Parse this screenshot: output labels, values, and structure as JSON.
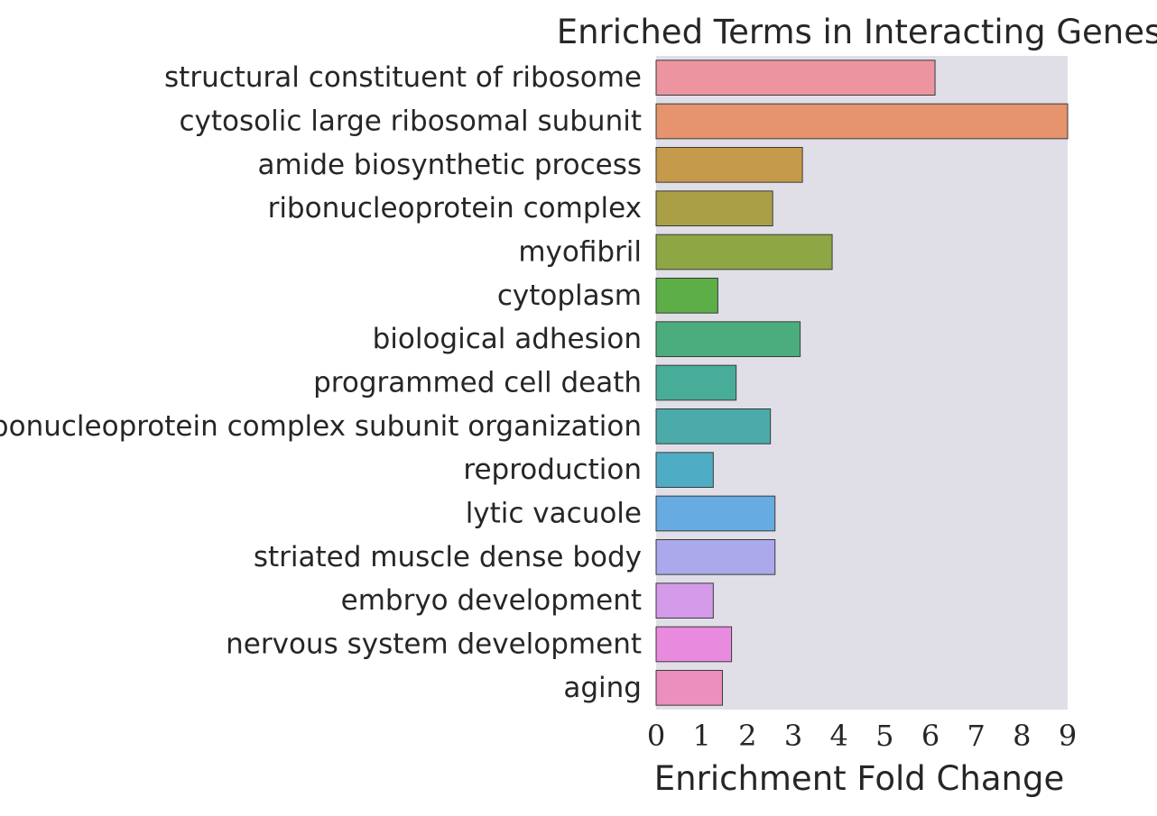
{
  "chart_data": {
    "type": "bar",
    "orientation": "horizontal",
    "title": "Enriched Terms in Interacting Genes",
    "xlabel": "Enrichment Fold Change",
    "ylabel": "",
    "xlim": [
      0,
      9
    ],
    "xticks": [
      "0",
      "1",
      "2",
      "3",
      "4",
      "5",
      "6",
      "7",
      "8",
      "9"
    ],
    "grid": false,
    "legend": "none",
    "background": "#e0dfe7",
    "categories": [
      "structural constituent of ribosome",
      "cytosolic large ribosomal subunit",
      "amide biosynthetic process",
      "ribonucleoprotein complex",
      "myofibril",
      "cytoplasm",
      "biological adhesion",
      "programmed cell death",
      "ribonucleoprotein complex subunit organization",
      "reproduction",
      "lytic vacuole",
      "striated muscle dense body",
      "embryo development",
      "nervous system development",
      "aging"
    ],
    "values": [
      6.1,
      9.0,
      3.2,
      2.55,
      3.85,
      1.35,
      3.15,
      1.75,
      2.5,
      1.25,
      2.6,
      2.6,
      1.25,
      1.65,
      1.45
    ],
    "colors": [
      "#ec95a1",
      "#e6946e",
      "#c59a4b",
      "#aa9e46",
      "#8ea644",
      "#5dae47",
      "#4bad7d",
      "#48ad98",
      "#4aabaa",
      "#4eadc5",
      "#66abe1",
      "#aba9ec",
      "#d29ae8",
      "#e88ade",
      "#eb8fbd"
    ]
  }
}
